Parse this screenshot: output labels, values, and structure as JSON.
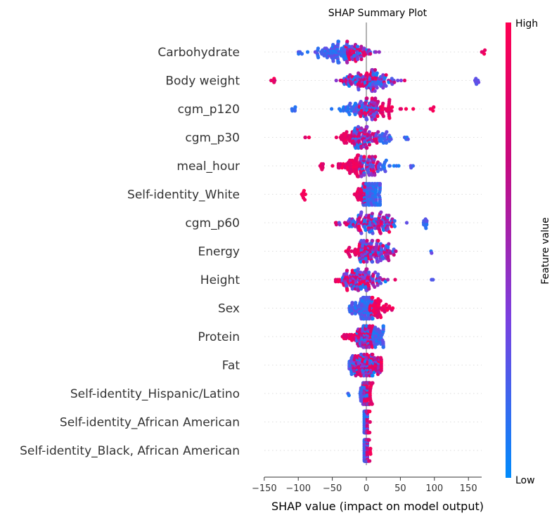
{
  "chart_data": {
    "type": "scatter",
    "title": "SHAP Summary Plot",
    "xlabel": "SHAP value (impact on model output)",
    "xticks": [
      -150,
      -100,
      -50,
      0,
      50,
      100,
      150
    ],
    "xlim": [
      -150,
      180
    ],
    "colorbar": {
      "label": "Feature value",
      "high_label": "High",
      "low_label": "Low",
      "colors": [
        "#008bfb",
        "#7a40e0",
        "#c8087e",
        "#ff0052"
      ]
    },
    "features": [
      {
        "name": "Carbohydrate",
        "low_range": [
          -100,
          20
        ],
        "high_range": [
          -30,
          175
        ],
        "neg_extreme": -100,
        "pos_extreme": 175,
        "center": -35,
        "spread": 22
      },
      {
        "name": "Body weight",
        "low_range": [
          -60,
          165
        ],
        "high_range": [
          -140,
          60
        ],
        "neg_extreme": -140,
        "pos_extreme": 165,
        "center": 0,
        "spread": 22
      },
      {
        "name": "cgm_p120",
        "low_range": [
          -110,
          20
        ],
        "high_range": [
          -10,
          100
        ],
        "neg_extreme": -110,
        "pos_extreme": 100,
        "center": 5,
        "spread": 22
      },
      {
        "name": "cgm_p30",
        "low_range": [
          -20,
          62
        ],
        "high_range": [
          -90,
          20
        ],
        "neg_extreme": -90,
        "pos_extreme": 62,
        "center": 0,
        "spread": 20
      },
      {
        "name": "meal_hour",
        "low_range": [
          -10,
          70
        ],
        "high_range": [
          -68,
          20
        ],
        "neg_extreme": -68,
        "pos_extreme": 70,
        "center": -5,
        "spread": 20
      },
      {
        "name": "Self-identity_White",
        "low_range": [
          -5,
          20
        ],
        "high_range": [
          -95,
          0
        ],
        "neg_extreme": -95,
        "pos_extreme": 20,
        "center": 5,
        "spread": 10
      },
      {
        "name": "cgm_p60",
        "low_range": [
          -40,
          90
        ],
        "high_range": [
          -45,
          40
        ],
        "neg_extreme": -45,
        "pos_extreme": 90,
        "center": 5,
        "spread": 20
      },
      {
        "name": "Energy",
        "low_range": [
          -10,
          100
        ],
        "high_range": [
          -30,
          70
        ],
        "neg_extreme": -30,
        "pos_extreme": 100,
        "center": 10,
        "spread": 18
      },
      {
        "name": "Height",
        "low_range": [
          -35,
          100
        ],
        "high_range": [
          -45,
          80
        ],
        "neg_extreme": -45,
        "pos_extreme": 100,
        "center": -5,
        "spread": 18
      },
      {
        "name": "Sex",
        "low_range": [
          -25,
          10
        ],
        "high_range": [
          5,
          40
        ],
        "neg_extreme": -25,
        "pos_extreme": 40,
        "center": 5,
        "spread": 14
      },
      {
        "name": "Protein",
        "low_range": [
          -15,
          25
        ],
        "high_range": [
          -35,
          10
        ],
        "neg_extreme": -35,
        "pos_extreme": 25,
        "center": 0,
        "spread": 14
      },
      {
        "name": "Fat",
        "low_range": [
          -25,
          20
        ],
        "high_range": [
          -20,
          22
        ],
        "neg_extreme": -25,
        "pos_extreme": 22,
        "center": 0,
        "spread": 12
      },
      {
        "name": "Self-identity_Hispanic/Latino",
        "low_range": [
          -28,
          5
        ],
        "high_range": [
          -5,
          10
        ],
        "neg_extreme": -28,
        "pos_extreme": 10,
        "center": 0,
        "spread": 4
      },
      {
        "name": "Self-identity_African American",
        "low_range": [
          -3,
          3
        ],
        "high_range": [
          0,
          6
        ],
        "neg_extreme": -3,
        "pos_extreme": 6,
        "center": 0,
        "spread": 2
      },
      {
        "name": "Self-identity_Black, African American",
        "low_range": [
          -3,
          3
        ],
        "high_range": [
          0,
          8
        ],
        "neg_extreme": -3,
        "pos_extreme": 8,
        "center": 0,
        "spread": 2
      }
    ]
  }
}
